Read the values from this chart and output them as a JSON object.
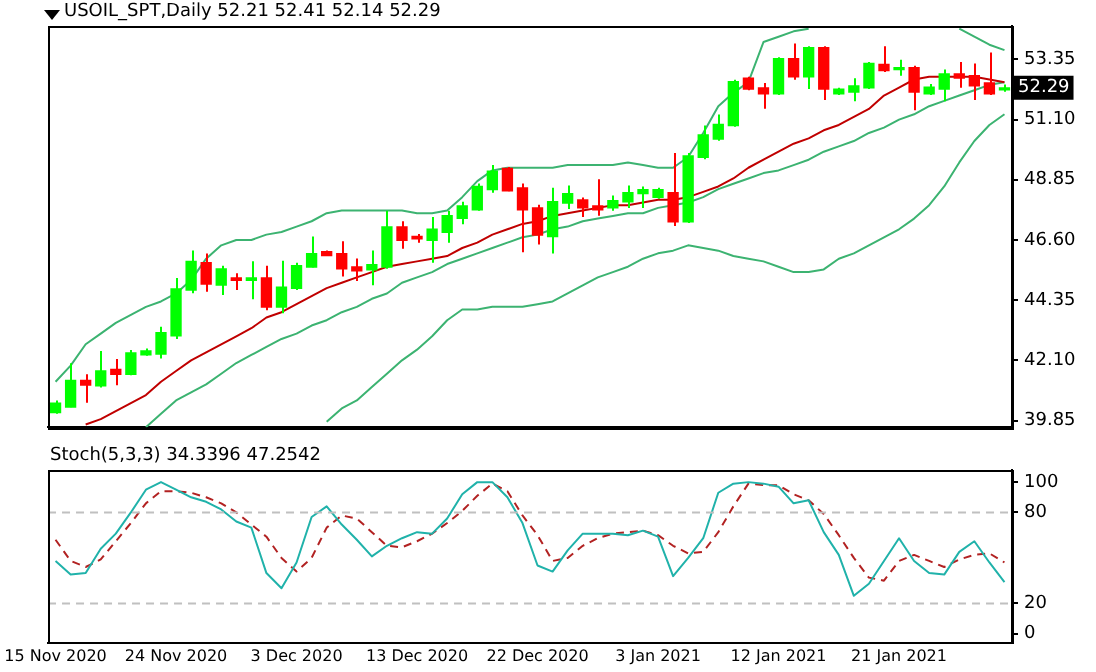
{
  "chart_data": [
    {
      "type": "candlestick",
      "title": "USOIL_SPT,Daily  52.21 52.41 52.14 52.29",
      "categories": [
        null,
        null,
        null,
        null,
        null,
        null,
        null,
        null,
        null,
        null,
        null,
        null,
        null,
        null,
        null,
        null,
        null,
        null,
        null,
        null,
        null,
        null,
        null,
        null,
        null,
        null,
        null,
        null,
        null,
        null,
        null,
        null,
        null,
        null,
        null,
        null,
        null,
        null,
        null,
        null,
        null,
        null,
        null,
        null,
        null,
        null,
        null,
        null,
        null,
        null,
        null,
        null,
        null,
        null,
        null,
        null,
        null,
        null,
        null,
        null,
        null,
        null,
        null,
        null
      ],
      "ohlc": [
        [
          40.15,
          40.6,
          40.1,
          40.5
        ],
        [
          40.35,
          41.99,
          40.35,
          41.35
        ],
        [
          41.35,
          41.58,
          40.51,
          41.17
        ],
        [
          41.15,
          42.45,
          41.08,
          41.7
        ],
        [
          41.76,
          42.15,
          41.17,
          41.58
        ],
        [
          41.58,
          42.49,
          41.54,
          42.38
        ],
        [
          42.31,
          42.54,
          42.27,
          42.45
        ],
        [
          42.33,
          43.36,
          42.17,
          43.13
        ],
        [
          43.02,
          45.18,
          42.9,
          44.77
        ],
        [
          44.73,
          46.21,
          44.61,
          45.8
        ],
        [
          45.75,
          46.09,
          44.66,
          44.95
        ],
        [
          44.91,
          45.64,
          44.54,
          45.52
        ],
        [
          45.18,
          45.36,
          44.73,
          45.09
        ],
        [
          45.09,
          45.8,
          44.38,
          45.18
        ],
        [
          45.18,
          45.64,
          43.97,
          44.09
        ],
        [
          44.09,
          45.82,
          43.86,
          44.84
        ],
        [
          44.79,
          45.75,
          44.73,
          45.64
        ],
        [
          45.59,
          46.73,
          45.57,
          46.09
        ],
        [
          46.16,
          46.21,
          46.0,
          46.02
        ],
        [
          46.09,
          46.55,
          45.23,
          45.52
        ],
        [
          45.59,
          45.91,
          45.07,
          45.45
        ],
        [
          45.48,
          46.21,
          44.91,
          45.68
        ],
        [
          45.59,
          47.69,
          45.52,
          47.09
        ],
        [
          47.09,
          47.3,
          46.27,
          46.59
        ],
        [
          46.73,
          46.82,
          46.5,
          46.64
        ],
        [
          46.59,
          47.46,
          45.75,
          47.0
        ],
        [
          46.89,
          47.69,
          46.5,
          47.51
        ],
        [
          47.41,
          48.03,
          47.19,
          47.87
        ],
        [
          47.73,
          48.71,
          47.69,
          48.6
        ],
        [
          48.48,
          49.4,
          48.37,
          49.17
        ],
        [
          49.28,
          49.33,
          48.42,
          48.44
        ],
        [
          48.55,
          48.71,
          46.14,
          47.73
        ],
        [
          47.8,
          47.92,
          46.43,
          46.78
        ],
        [
          46.73,
          48.55,
          46.09,
          48.03
        ],
        [
          47.98,
          48.64,
          47.76,
          48.33
        ],
        [
          48.1,
          48.19,
          47.46,
          47.8
        ],
        [
          47.87,
          48.87,
          47.51,
          47.73
        ],
        [
          47.8,
          48.26,
          47.69,
          48.07
        ],
        [
          48.03,
          48.64,
          47.8,
          48.37
        ],
        [
          48.33,
          48.6,
          47.8,
          48.48
        ],
        [
          48.19,
          48.55,
          48.14,
          48.48
        ],
        [
          48.37,
          49.85,
          47.12,
          47.28
        ],
        [
          47.28,
          49.85,
          47.23,
          49.74
        ],
        [
          49.69,
          50.88,
          49.62,
          50.53
        ],
        [
          50.37,
          51.29,
          50.31,
          50.92
        ],
        [
          50.88,
          52.59,
          50.83,
          52.52
        ],
        [
          52.65,
          52.7,
          52.2,
          52.24
        ],
        [
          52.29,
          52.47,
          51.51,
          52.06
        ],
        [
          52.06,
          53.43,
          52.02,
          53.38
        ],
        [
          53.38,
          53.95,
          52.59,
          52.7
        ],
        [
          52.7,
          53.84,
          52.24,
          53.79
        ],
        [
          53.79,
          53.84,
          51.83,
          52.24
        ],
        [
          52.06,
          52.29,
          52.02,
          52.24
        ],
        [
          52.13,
          52.65,
          51.79,
          52.36
        ],
        [
          52.29,
          53.25,
          52.24,
          53.2
        ],
        [
          53.16,
          53.84,
          52.88,
          52.93
        ],
        [
          52.97,
          53.34,
          52.74,
          53.04
        ],
        [
          53.04,
          53.11,
          51.45,
          52.13
        ],
        [
          52.06,
          52.43,
          52.02,
          52.31
        ],
        [
          52.24,
          52.97,
          51.79,
          52.81
        ],
        [
          52.81,
          53.25,
          52.29,
          52.65
        ],
        [
          52.74,
          53.2,
          51.83,
          52.36
        ],
        [
          52.47,
          53.61,
          52.02,
          52.06
        ],
        [
          52.21,
          52.41,
          52.14,
          52.29
        ]
      ],
      "colors": [
        "#00ff00",
        "#00ff00",
        "#ff0000",
        "#00ff00",
        "#ff0000",
        "#00ff00",
        "#00ff00",
        "#00ff00",
        "#00ff00",
        "#00ff00",
        "#ff0000",
        "#00ff00",
        "#ff0000",
        "#00ff00",
        "#ff0000",
        "#00ff00",
        "#00ff00",
        "#00ff00",
        "#ff0000",
        "#ff0000",
        "#ff0000",
        "#00ff00",
        "#00ff00",
        "#ff0000",
        "#ff0000",
        "#00ff00",
        "#00ff00",
        "#00ff00",
        "#00ff00",
        "#00ff00",
        "#ff0000",
        "#ff0000",
        "#ff0000",
        "#00ff00",
        "#00ff00",
        "#ff0000",
        "#ff0000",
        "#00ff00",
        "#00ff00",
        "#00ff00",
        "#00ff00",
        "#ff0000",
        "#00ff00",
        "#00ff00",
        "#00ff00",
        "#00ff00",
        "#ff0000",
        "#ff0000",
        "#00ff00",
        "#ff0000",
        "#00ff00",
        "#ff0000",
        "#00ff00",
        "#00ff00",
        "#00ff00",
        "#ff0000",
        "#00ff00",
        "#ff0000",
        "#00ff00",
        "#00ff00",
        "#ff0000",
        "#ff0000",
        "#ff0000",
        "#00ff00"
      ],
      "series": [
        {
          "type": "line",
          "color": "#3cb371",
          "values": [
            41.3,
            41.9,
            42.7,
            43.1,
            43.5,
            43.8,
            44.1,
            44.3,
            44.6,
            45.1,
            45.9,
            46.4,
            46.6,
            46.6,
            46.8,
            46.9,
            47.1,
            47.3,
            47.6,
            47.7,
            47.7,
            47.7,
            47.7,
            47.7,
            47.6,
            47.6,
            47.7,
            48.2,
            48.8,
            49.2,
            49.3,
            49.3,
            49.3,
            49.3,
            49.4,
            49.4,
            49.4,
            49.4,
            49.5,
            49.4,
            49.3,
            49.3,
            49.7,
            50.6,
            51.6,
            52.1,
            52.5,
            54.0,
            54.2,
            54.4,
            54.5,
            null,
            null,
            null,
            null,
            null,
            null,
            null,
            null,
            null,
            54.5,
            54.2,
            53.9,
            53.7
          ]
        },
        {
          "type": "line",
          "color": "#c00000",
          "values": [
            null,
            null,
            39.7,
            39.9,
            40.2,
            40.5,
            40.8,
            41.3,
            41.7,
            42.1,
            42.4,
            42.7,
            43.0,
            43.3,
            43.7,
            43.9,
            44.2,
            44.5,
            44.8,
            45.0,
            45.2,
            45.4,
            45.6,
            45.7,
            45.8,
            45.9,
            46.0,
            46.3,
            46.5,
            46.8,
            47.0,
            47.2,
            47.3,
            47.5,
            47.6,
            47.7,
            47.8,
            47.9,
            47.9,
            48.0,
            48.1,
            48.1,
            48.2,
            48.4,
            48.6,
            48.9,
            49.3,
            49.6,
            49.9,
            50.2,
            50.4,
            50.7,
            50.9,
            51.2,
            51.5,
            52.0,
            52.3,
            52.6,
            52.7,
            52.7,
            52.7,
            52.7,
            52.6,
            52.5
          ]
        },
        {
          "type": "line",
          "color": "#3cb371",
          "values": [
            null,
            null,
            null,
            null,
            null,
            null,
            39.6,
            40.1,
            40.6,
            40.9,
            41.2,
            41.6,
            42.0,
            42.3,
            42.6,
            42.9,
            43.1,
            43.4,
            43.6,
            43.9,
            44.1,
            44.4,
            44.6,
            45.0,
            45.2,
            45.4,
            45.7,
            45.9,
            46.1,
            46.3,
            46.5,
            46.7,
            46.8,
            47.0,
            47.1,
            47.3,
            47.4,
            47.5,
            47.6,
            47.6,
            47.8,
            47.9,
            48.0,
            48.2,
            48.5,
            48.7,
            48.9,
            49.1,
            49.2,
            49.4,
            49.6,
            49.9,
            50.1,
            50.3,
            50.6,
            50.8,
            51.1,
            51.3,
            51.6,
            51.8,
            52.0,
            52.2,
            52.4,
            52.5
          ]
        },
        {
          "type": "line",
          "color": "#3cb371",
          "values": [
            null,
            null,
            null,
            null,
            null,
            null,
            null,
            null,
            null,
            null,
            null,
            null,
            null,
            null,
            null,
            null,
            null,
            null,
            39.8,
            40.3,
            40.6,
            41.1,
            41.6,
            42.1,
            42.5,
            43.0,
            43.6,
            44.0,
            44.0,
            44.1,
            44.1,
            44.1,
            44.2,
            44.3,
            44.6,
            44.9,
            45.2,
            45.4,
            45.6,
            45.9,
            46.1,
            46.2,
            46.4,
            46.3,
            46.2,
            46.0,
            45.9,
            45.8,
            45.6,
            45.4,
            45.4,
            45.5,
            45.9,
            46.1,
            46.4,
            46.7,
            47.0,
            47.4,
            47.9,
            48.6,
            49.5,
            50.3,
            50.9,
            51.3
          ]
        }
      ],
      "ylim": [
        39.6,
        54.6
      ],
      "yticks": [
        39.85,
        {
          "value": 42.1,
          "label": "42.10"
        },
        44.35,
        {
          "value": 46.6,
          "label": "46.60"
        },
        48.85,
        {
          "value": 51.1,
          "label": "51.10"
        },
        53.35
      ],
      "annotations": [
        {
          "text": "52.29",
          "y": 52.29
        }
      ],
      "tick_labels": "y",
      "grid": false,
      "legend": false
    },
    {
      "type": "line",
      "title": "Stoch(5,3,3) 34.3396 47.2542",
      "categories": [
        "15 Nov 2020",
        null,
        null,
        null,
        null,
        null,
        null,
        null,
        "24 Nov 2020",
        null,
        null,
        null,
        null,
        null,
        null,
        null,
        "3 Dec 2020",
        null,
        null,
        null,
        null,
        null,
        null,
        null,
        "13 Dec 2020",
        null,
        null,
        null,
        null,
        null,
        null,
        null,
        "22 Dec 2020",
        null,
        null,
        null,
        null,
        null,
        null,
        null,
        "3 Jan 2021",
        null,
        null,
        null,
        null,
        null,
        null,
        null,
        "12 Jan 2021",
        null,
        null,
        null,
        null,
        null,
        null,
        null,
        "21 Jan 2021",
        null,
        null,
        null,
        null,
        null,
        null,
        null
      ],
      "series": [
        {
          "type": "line",
          "color": "#20b2aa",
          "line_style": "solid",
          "values": [
            48,
            39,
            40,
            56,
            66,
            80,
            95,
            100,
            95,
            90,
            87,
            82,
            74,
            70,
            40,
            30,
            47,
            77,
            84,
            72,
            62,
            51,
            58,
            63,
            67,
            66,
            76,
            92,
            100,
            100,
            90,
            73,
            45,
            41,
            55,
            66,
            66,
            66,
            65,
            68,
            64,
            38,
            50,
            63,
            93,
            99,
            100,
            99,
            97,
            86,
            88,
            67,
            52,
            25,
            33,
            48,
            63,
            48,
            40,
            39,
            54,
            61,
            47,
            34
          ]
        },
        {
          "type": "line",
          "color": "#b22222",
          "line_style": "dashed",
          "values": [
            62,
            48,
            44,
            49,
            61,
            73,
            86,
            94,
            94,
            93,
            90,
            86,
            80,
            72,
            64,
            50,
            41,
            50,
            70,
            78,
            76,
            67,
            58,
            57,
            61,
            66,
            73,
            81,
            91,
            99,
            94,
            78,
            65,
            48,
            50,
            58,
            63,
            66,
            67,
            68,
            65,
            58,
            53,
            54,
            67,
            84,
            99,
            98,
            98,
            92,
            88,
            79,
            65,
            50,
            37,
            35,
            48,
            52,
            48,
            44,
            49,
            52,
            53,
            47
          ]
        }
      ],
      "ylim": [
        -6,
        108
      ],
      "yticks": [
        0,
        20,
        80,
        100
      ],
      "ref_lines": [
        {
          "axis": "y",
          "value": 20,
          "color": "#c0c0c0",
          "line_style": "dashed"
        },
        {
          "axis": "y",
          "value": 80,
          "color": "#c0c0c0",
          "line_style": "dashed"
        }
      ],
      "grid": false,
      "legend": false
    }
  ]
}
